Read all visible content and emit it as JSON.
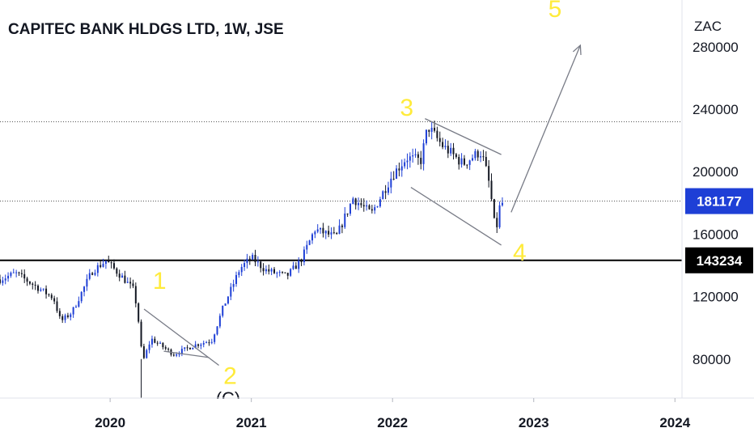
{
  "chart_data": {
    "type": "candlestick",
    "title": "CAPITEC BANK HLDGS LTD, 1W, JSE",
    "currency": "ZAC",
    "x_ticks": [
      "2020",
      "2021",
      "2022",
      "2023",
      "2024"
    ],
    "y_ticks": [
      "80000",
      "120000",
      "160000",
      "200000",
      "240000",
      "280000"
    ],
    "ylim": [
      55000,
      310000
    ],
    "xlim": [
      2019.22,
      2024.05
    ],
    "grid": false,
    "colors": {
      "up": "#1e3fd6",
      "down": "#131722",
      "wave_label": "#ffeb3b",
      "accent_tag": "#1e3fd6",
      "support": "#000000"
    },
    "price_tags": [
      {
        "label": "181177",
        "value": 181177,
        "color": "#1e3fd6"
      },
      {
        "label": "143234",
        "value": 143234,
        "color": "#000000"
      }
    ],
    "support_level": 143234,
    "dotted_levels": [
      232000,
      181177
    ],
    "wave_labels": [
      {
        "label": "1",
        "x": 2020.35,
        "y": 125000
      },
      {
        "label": "2",
        "x": 2020.85,
        "y": 64000
      },
      {
        "label": "3",
        "x": 2022.1,
        "y": 236000
      },
      {
        "label": "4",
        "x": 2022.9,
        "y": 143000
      },
      {
        "label": "5",
        "x": 2023.15,
        "y": 299000
      }
    ],
    "wave_c_label": "(C)",
    "channels": [
      {
        "from": [
          2020.24,
          112000
        ],
        "to": [
          2020.77,
          76000
        ]
      },
      {
        "from": [
          2020.38,
          85000
        ],
        "to": [
          2020.7,
          81000
        ]
      },
      {
        "from": [
          2022.23,
          234000
        ],
        "to": [
          2022.77,
          211000
        ]
      },
      {
        "from": [
          2022.13,
          190000
        ],
        "to": [
          2022.77,
          153000
        ]
      }
    ],
    "arrow": {
      "from": [
        2022.84,
        174000
      ],
      "to": [
        2023.33,
        281000
      ]
    },
    "anchors": [
      [
        2019.22,
        131000
      ],
      [
        2019.33,
        135000
      ],
      [
        2019.5,
        125000
      ],
      [
        2019.6,
        119000
      ],
      [
        2019.65,
        104000
      ],
      [
        2019.73,
        110000
      ],
      [
        2019.87,
        136000
      ],
      [
        2019.97,
        143000
      ],
      [
        2020.08,
        133000
      ],
      [
        2020.17,
        124000
      ],
      [
        2020.2,
        105000
      ],
      [
        2020.23,
        78000
      ],
      [
        2020.29,
        93000
      ],
      [
        2020.45,
        83000
      ],
      [
        2020.6,
        89000
      ],
      [
        2020.72,
        92000
      ],
      [
        2020.8,
        113000
      ],
      [
        2020.92,
        138000
      ],
      [
        2021.0,
        145000
      ],
      [
        2021.1,
        137000
      ],
      [
        2021.25,
        133000
      ],
      [
        2021.35,
        143000
      ],
      [
        2021.45,
        163000
      ],
      [
        2021.6,
        158000
      ],
      [
        2021.72,
        183000
      ],
      [
        2021.85,
        173000
      ],
      [
        2022.0,
        198000
      ],
      [
        2022.1,
        209000
      ],
      [
        2022.2,
        207000
      ],
      [
        2022.25,
        229000
      ],
      [
        2022.35,
        217000
      ],
      [
        2022.5,
        205000
      ],
      [
        2022.62,
        213000
      ],
      [
        2022.65,
        206000
      ],
      [
        2022.69,
        190000
      ],
      [
        2022.73,
        160000
      ],
      [
        2022.76,
        178000
      ],
      [
        2022.79,
        181177
      ]
    ]
  }
}
